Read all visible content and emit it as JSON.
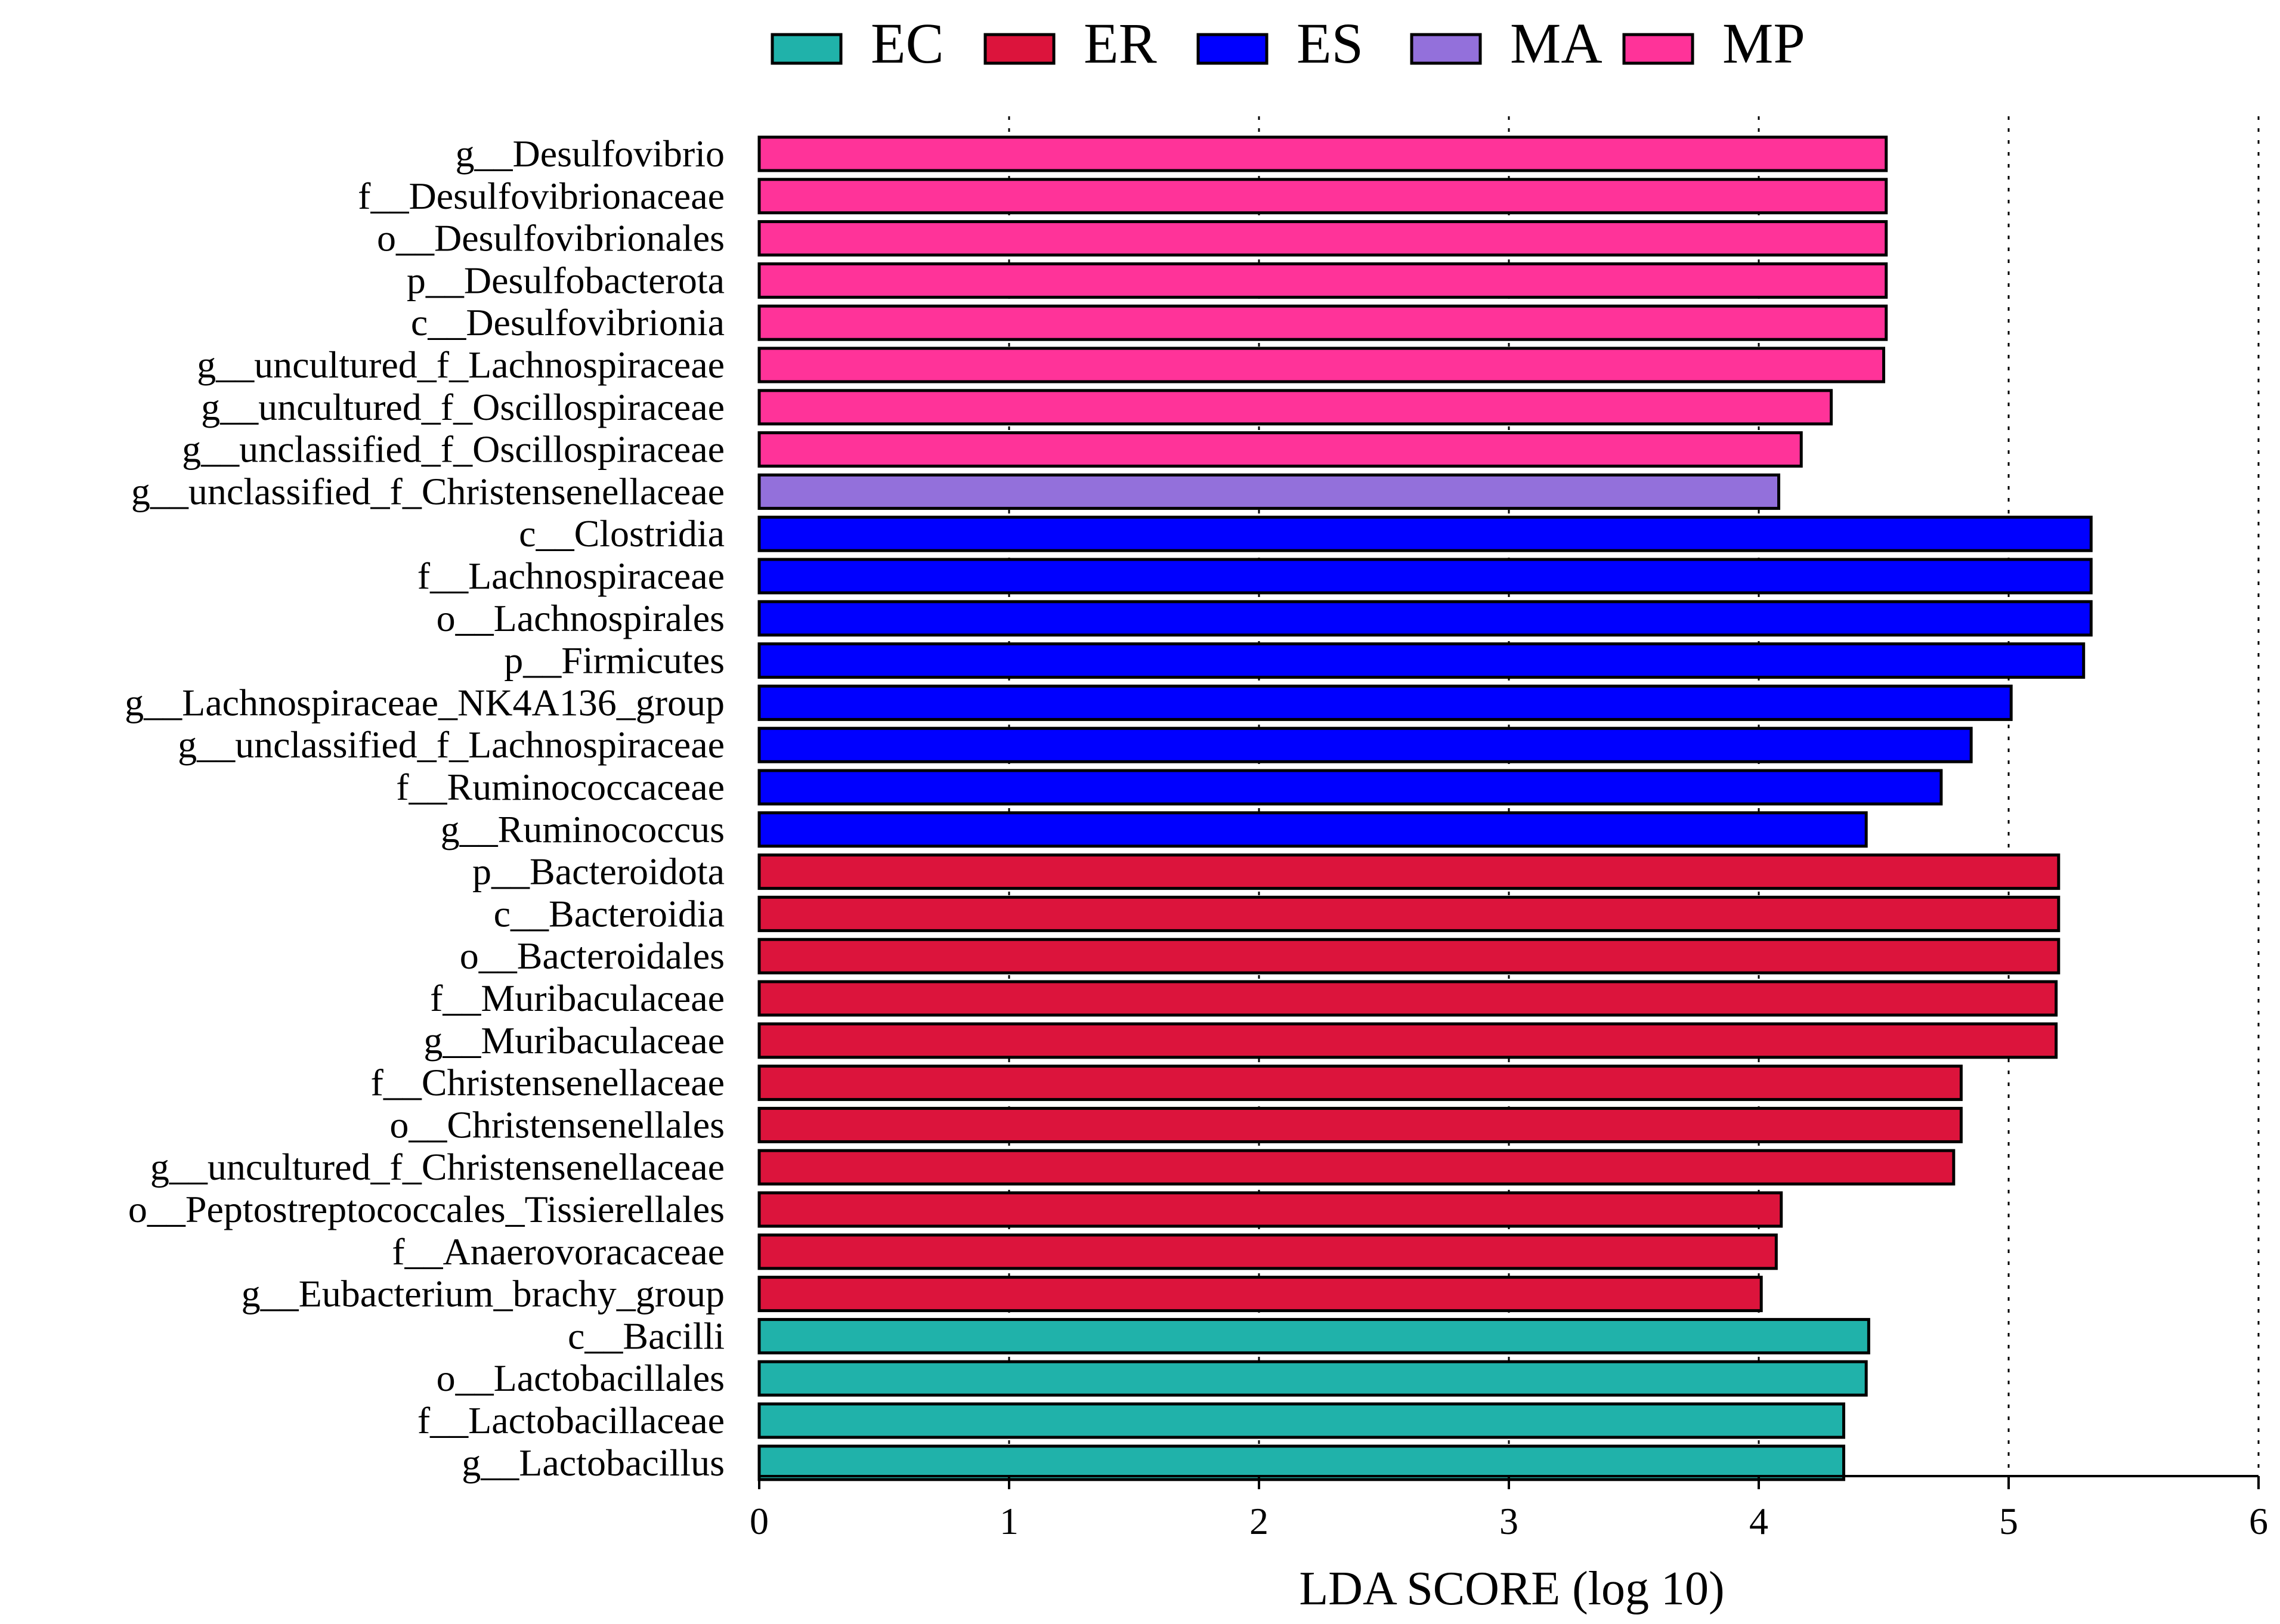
{
  "chart_data": {
    "type": "bar",
    "orientation": "horizontal",
    "xlabel": "LDA SCORE (log 10)",
    "xlim": [
      0,
      6
    ],
    "xticks": [
      0,
      1,
      2,
      3,
      4,
      5,
      6
    ],
    "grid": "vertical dotted",
    "legend_position": "top",
    "groups": [
      {
        "name": "EC",
        "color": "#20b2aa"
      },
      {
        "name": "ER",
        "color": "#dc143c"
      },
      {
        "name": "ES",
        "color": "#0000ff"
      },
      {
        "name": "MA",
        "color": "#9370db"
      },
      {
        "name": "MP",
        "color": "#ff3399"
      }
    ],
    "bars": [
      {
        "label": "g__Desulfovibrio",
        "value": 4.51,
        "group": "MP"
      },
      {
        "label": "f__Desulfovibrionaceae",
        "value": 4.51,
        "group": "MP"
      },
      {
        "label": "o__Desulfovibrionales",
        "value": 4.51,
        "group": "MP"
      },
      {
        "label": "p__Desulfobacterota",
        "value": 4.51,
        "group": "MP"
      },
      {
        "label": "c__Desulfovibrionia",
        "value": 4.51,
        "group": "MP"
      },
      {
        "label": "g__uncultured_f_Lachnospiraceae",
        "value": 4.5,
        "group": "MP"
      },
      {
        "label": "g__uncultured_f_Oscillospiraceae",
        "value": 4.29,
        "group": "MP"
      },
      {
        "label": "g__unclassified_f_Oscillospiraceae",
        "value": 4.17,
        "group": "MP"
      },
      {
        "label": "g__unclassified_f_Christensenellaceae",
        "value": 4.08,
        "group": "MA"
      },
      {
        "label": "c__Clostridia",
        "value": 5.33,
        "group": "ES"
      },
      {
        "label": "f__Lachnospiraceae",
        "value": 5.33,
        "group": "ES"
      },
      {
        "label": "o__Lachnospirales",
        "value": 5.33,
        "group": "ES"
      },
      {
        "label": "p__Firmicutes",
        "value": 5.3,
        "group": "ES"
      },
      {
        "label": "g__Lachnospiraceae_NK4A136_group",
        "value": 5.01,
        "group": "ES"
      },
      {
        "label": "g__unclassified_f_Lachnospiraceae",
        "value": 4.85,
        "group": "ES"
      },
      {
        "label": "f__Ruminococcaceae",
        "value": 4.73,
        "group": "ES"
      },
      {
        "label": "g__Ruminococcus",
        "value": 4.43,
        "group": "ES"
      },
      {
        "label": "p__Bacteroidota",
        "value": 5.2,
        "group": "ER"
      },
      {
        "label": "c__Bacteroidia",
        "value": 5.2,
        "group": "ER"
      },
      {
        "label": "o__Bacteroidales",
        "value": 5.2,
        "group": "ER"
      },
      {
        "label": "f__Muribaculaceae",
        "value": 5.19,
        "group": "ER"
      },
      {
        "label": "g__Muribaculaceae",
        "value": 5.19,
        "group": "ER"
      },
      {
        "label": "f__Christensenellaceae",
        "value": 4.81,
        "group": "ER"
      },
      {
        "label": "o__Christensenellales",
        "value": 4.81,
        "group": "ER"
      },
      {
        "label": "g__uncultured_f_Christensenellaceae",
        "value": 4.78,
        "group": "ER"
      },
      {
        "label": "o__Peptostreptococcales_Tissierellales",
        "value": 4.09,
        "group": "ER"
      },
      {
        "label": "f__Anaerovoracaceae",
        "value": 4.07,
        "group": "ER"
      },
      {
        "label": "g__Eubacterium_brachy_group",
        "value": 4.01,
        "group": "ER"
      },
      {
        "label": "c__Bacilli",
        "value": 4.44,
        "group": "EC"
      },
      {
        "label": "o__Lactobacillales",
        "value": 4.43,
        "group": "EC"
      },
      {
        "label": "f__Lactobacillaceae",
        "value": 4.34,
        "group": "EC"
      },
      {
        "label": "g__Lactobacillus",
        "value": 4.34,
        "group": "EC"
      }
    ]
  }
}
